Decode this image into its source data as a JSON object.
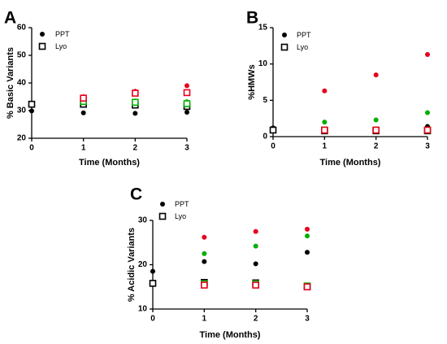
{
  "chart_data": [
    {
      "panel": "A",
      "type": "scatter",
      "ylabel": "% Basic Variants",
      "xlabel": "Time (Months)",
      "xlim": [
        0,
        3
      ],
      "ylim": [
        20,
        60
      ],
      "xticks": [
        0,
        1,
        2,
        3
      ],
      "yticks": [
        20,
        30,
        40,
        50,
        60
      ],
      "legend": {
        "placement": "top-left",
        "entries": [
          {
            "label": "PPT",
            "marker": "filled-circle"
          },
          {
            "label": "Lyo",
            "marker": "open-square"
          }
        ]
      },
      "series": [
        {
          "name": "PPT",
          "color": "#000000",
          "marker": "filled-circle",
          "x": [
            0,
            1,
            2,
            3
          ],
          "y": [
            29.9,
            29.2,
            29.0,
            29.4
          ]
        },
        {
          "color": "#00b000",
          "marker": "filled-circle",
          "x": [
            1,
            2,
            3
          ],
          "y": [
            33.8,
            33.5,
            33.2
          ]
        },
        {
          "color": "#e8001c",
          "marker": "filled-circle",
          "x": [
            1,
            2,
            3
          ],
          "y": [
            35.0,
            37.0,
            39.0
          ]
        },
        {
          "name": "Lyo",
          "color": "#000000",
          "marker": "open-square",
          "x": [
            0,
            1,
            2,
            3
          ],
          "y": [
            32.3,
            32.3,
            32.0,
            31.5
          ]
        },
        {
          "color": "#00b000",
          "marker": "open-square",
          "x": [
            1,
            2,
            3
          ],
          "y": [
            33.3,
            33.0,
            32.5
          ]
        },
        {
          "color": "#e8001c",
          "marker": "open-square",
          "x": [
            1,
            2,
            3
          ],
          "y": [
            34.5,
            36.3,
            36.5
          ]
        }
      ]
    },
    {
      "panel": "B",
      "type": "scatter",
      "ylabel": "%HMWs",
      "xlabel": "Time (Months)",
      "xlim": [
        0,
        3
      ],
      "ylim": [
        0,
        15
      ],
      "xticks": [
        0,
        1,
        2,
        3
      ],
      "yticks": [
        0,
        5,
        10,
        15
      ],
      "legend": {
        "placement": "top-right",
        "entries": [
          {
            "label": "PPT",
            "marker": "filled-circle"
          },
          {
            "label": "Lyo",
            "marker": "open-square"
          }
        ]
      },
      "series": [
        {
          "name": "PPT",
          "color": "#000000",
          "marker": "filled-circle",
          "x": [
            0,
            1,
            2,
            3
          ],
          "y": [
            1.2,
            1.0,
            1.0,
            1.4
          ]
        },
        {
          "color": "#00b000",
          "marker": "filled-circle",
          "x": [
            1,
            2,
            3
          ],
          "y": [
            2.0,
            2.3,
            3.3
          ]
        },
        {
          "color": "#e8001c",
          "marker": "filled-circle",
          "x": [
            1,
            2,
            3
          ],
          "y": [
            6.3,
            8.5,
            11.3
          ]
        },
        {
          "name": "Lyo",
          "color": "#000000",
          "marker": "open-square",
          "x": [
            0,
            1,
            2,
            3
          ],
          "y": [
            0.9,
            0.8,
            0.8,
            0.8
          ]
        },
        {
          "color": "#00b000",
          "marker": "open-square",
          "x": [
            1,
            2,
            3
          ],
          "y": [
            0.9,
            0.9,
            0.9
          ]
        },
        {
          "color": "#e8001c",
          "marker": "open-square",
          "x": [
            1,
            2,
            3
          ],
          "y": [
            0.9,
            0.9,
            0.9
          ]
        }
      ]
    },
    {
      "panel": "C",
      "type": "scatter",
      "ylabel": "% Acidic Variants",
      "xlabel": "Time (Months)",
      "xlim": [
        0,
        3
      ],
      "ylim": [
        10,
        30
      ],
      "xticks": [
        0,
        1,
        2,
        3
      ],
      "yticks": [
        10,
        20,
        30
      ],
      "legend": {
        "placement": "top-left",
        "entries": [
          {
            "label": "PPT",
            "marker": "filled-circle"
          },
          {
            "label": "Lyo",
            "marker": "open-square"
          }
        ]
      },
      "series": [
        {
          "name": "PPT",
          "color": "#000000",
          "marker": "filled-circle",
          "x": [
            0,
            1,
            2,
            3
          ],
          "y": [
            18.5,
            20.7,
            20.2,
            22.8
          ]
        },
        {
          "color": "#00b000",
          "marker": "filled-circle",
          "x": [
            1,
            2,
            3
          ],
          "y": [
            22.5,
            24.2,
            26.5
          ]
        },
        {
          "color": "#e8001c",
          "marker": "filled-circle",
          "x": [
            1,
            2,
            3
          ],
          "y": [
            26.2,
            27.5,
            28.0
          ]
        },
        {
          "name": "Lyo",
          "color": "#000000",
          "marker": "open-square",
          "x": [
            0,
            1,
            2,
            3
          ],
          "y": [
            15.8,
            16.0,
            15.9,
            15.0
          ]
        },
        {
          "color": "#00b000",
          "marker": "open-square",
          "x": [
            1,
            2,
            3
          ],
          "y": [
            15.7,
            15.7,
            15.2
          ]
        },
        {
          "color": "#e8001c",
          "marker": "open-square",
          "x": [
            1,
            2,
            3
          ],
          "y": [
            15.4,
            15.4,
            15.0
          ]
        }
      ]
    }
  ]
}
